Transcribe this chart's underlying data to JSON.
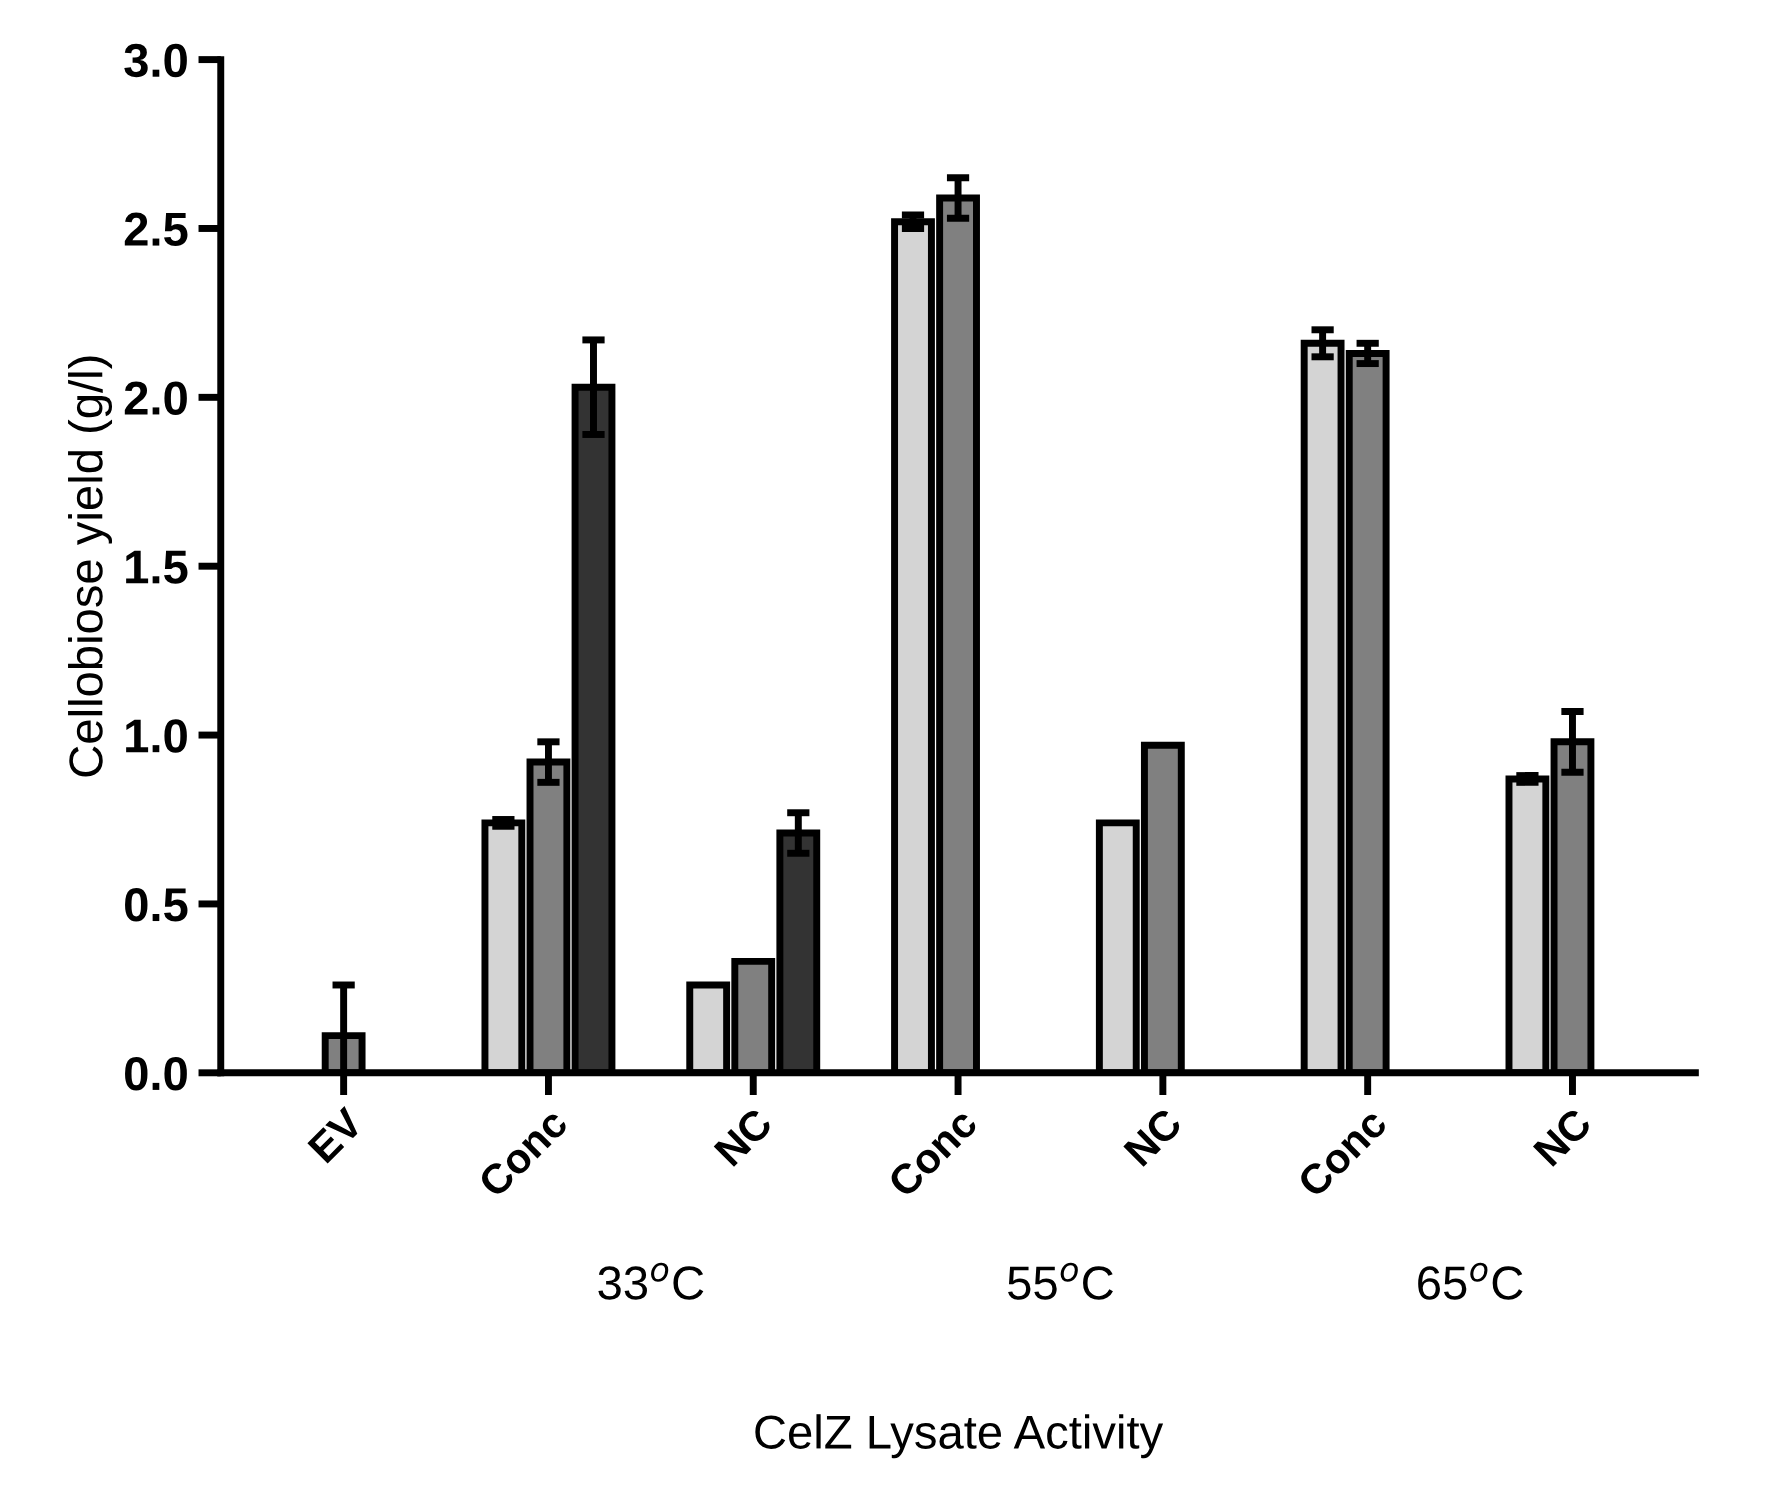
{
  "chart_data": {
    "type": "bar",
    "xlabel": "CelZ Lysate Activity",
    "ylabel": "Cellobiose yield (g/l)",
    "categories": [
      "EV",
      "Conc",
      "NC",
      "Conc",
      "NC",
      "Conc",
      "NC"
    ],
    "series": [
      {
        "color": "#d4d4d4",
        "values": [
          null,
          0.74,
          0.26,
          2.52,
          0.74,
          2.16,
          0.87
        ],
        "errors": [
          null,
          0.01,
          null,
          0.02,
          null,
          0.04,
          0.01
        ]
      },
      {
        "color": "#808080",
        "values": [
          0.11,
          0.92,
          0.33,
          2.59,
          0.97,
          2.13,
          0.98
        ],
        "errors": [
          0.15,
          0.06,
          null,
          0.06,
          null,
          0.03,
          0.09
        ]
      },
      {
        "color": "#333333",
        "values": [
          null,
          2.03,
          0.71,
          null,
          null,
          null,
          null
        ],
        "errors": [
          null,
          0.14,
          0.06,
          null,
          null,
          null,
          null
        ]
      }
    ],
    "annotations": [
      "33$^{o}$C",
      "55$^{o}$C",
      "65$^{o}$C"
    ],
    "ylim": [
      0,
      3.0
    ],
    "yticks": [
      {
        "value": 0,
        "label": "0.0"
      },
      0.5,
      {
        "value": 1,
        "label": "1.0"
      },
      1.5,
      {
        "value": 2,
        "label": "2.0"
      },
      2.5,
      {
        "value": 3,
        "label": "3.0"
      }
    ],
    "grid": false,
    "legend": false
  }
}
